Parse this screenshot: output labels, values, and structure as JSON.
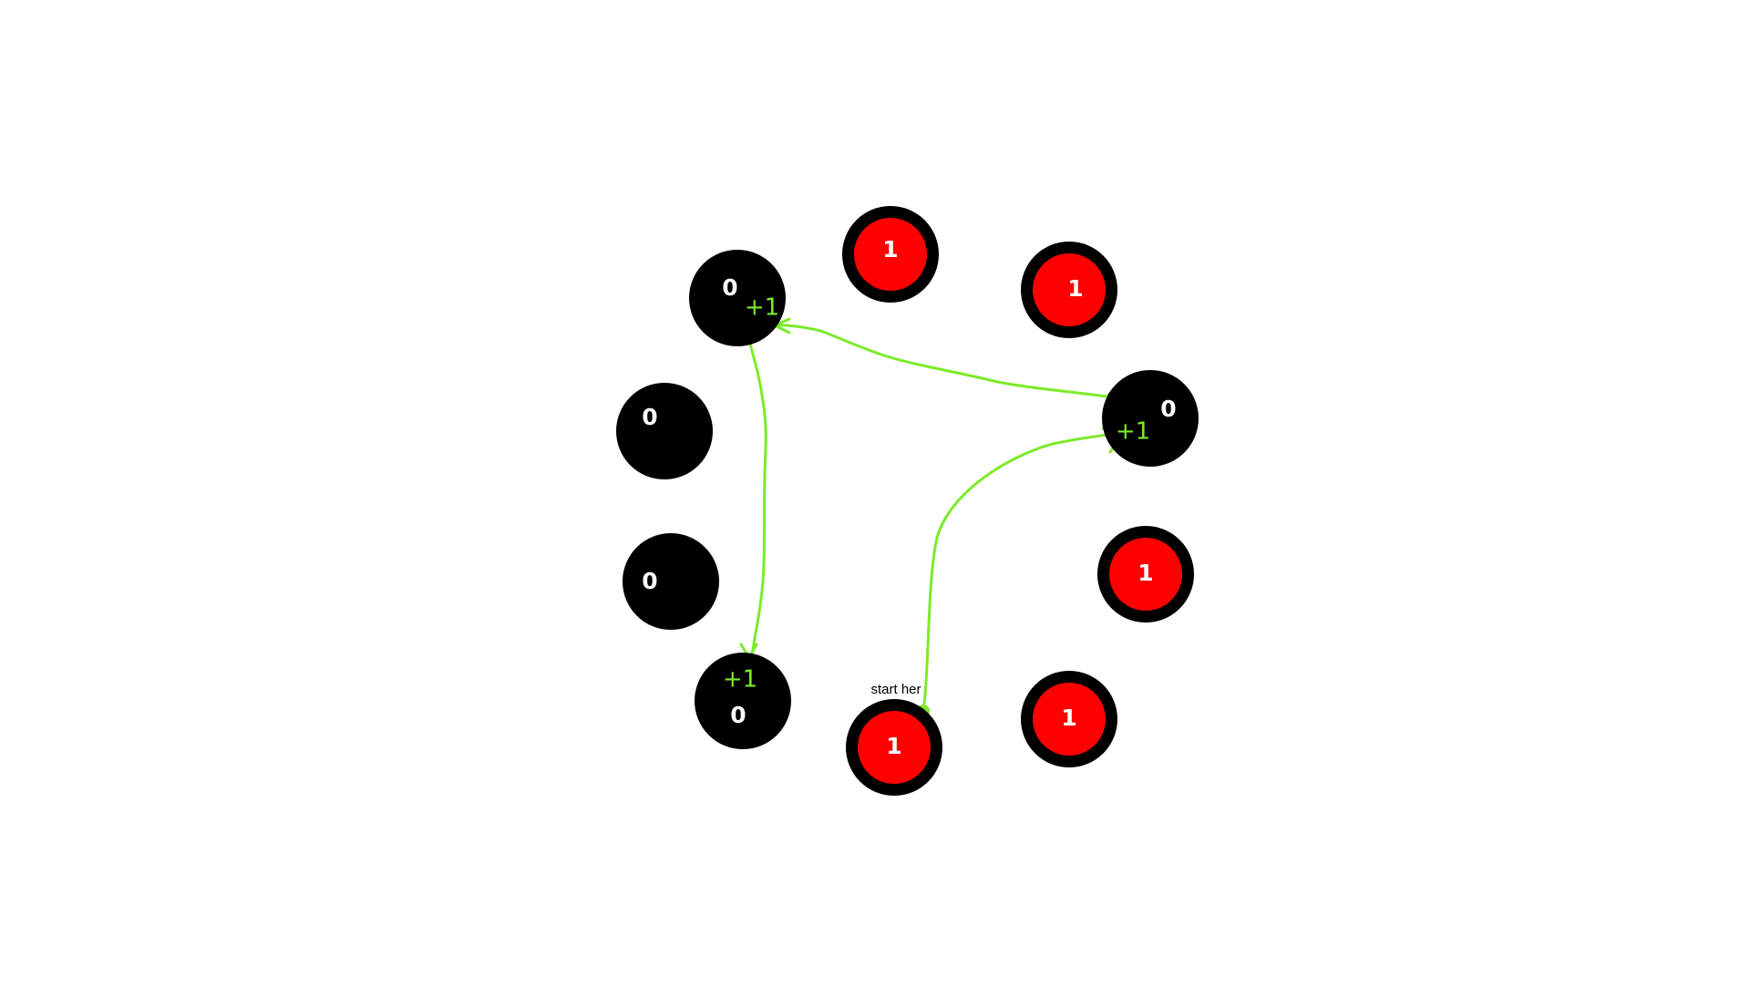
{
  "colors": {
    "background": "#ffffff",
    "node_outer": "#000000",
    "node_active_fill": "#ff0000",
    "node_text": "#ffffff",
    "annotation": "#7CEB2A"
  },
  "diagram": {
    "start_label": "start her",
    "nodes": [
      {
        "id": "n1",
        "value": "1",
        "active": true
      },
      {
        "id": "n2",
        "value": "1",
        "active": true
      },
      {
        "id": "n3",
        "value": "0",
        "active": false
      },
      {
        "id": "n4",
        "value": "1",
        "active": true
      },
      {
        "id": "n5",
        "value": "1",
        "active": true
      },
      {
        "id": "n6",
        "value": "1",
        "active": true
      },
      {
        "id": "n7",
        "value": "0",
        "active": false
      },
      {
        "id": "n8",
        "value": "0",
        "active": false
      },
      {
        "id": "n9",
        "value": "0",
        "active": false
      },
      {
        "id": "n10",
        "value": "0",
        "active": false
      }
    ],
    "increments": [
      {
        "target": "n3",
        "label": "+1"
      },
      {
        "target": "n10",
        "label": "+1"
      },
      {
        "target": "n7",
        "label": "+1"
      }
    ],
    "arrows": [
      {
        "from": "n5",
        "to": "n3"
      },
      {
        "from": "n3",
        "to": "n10"
      },
      {
        "from": "n10",
        "to": "n7"
      }
    ]
  }
}
